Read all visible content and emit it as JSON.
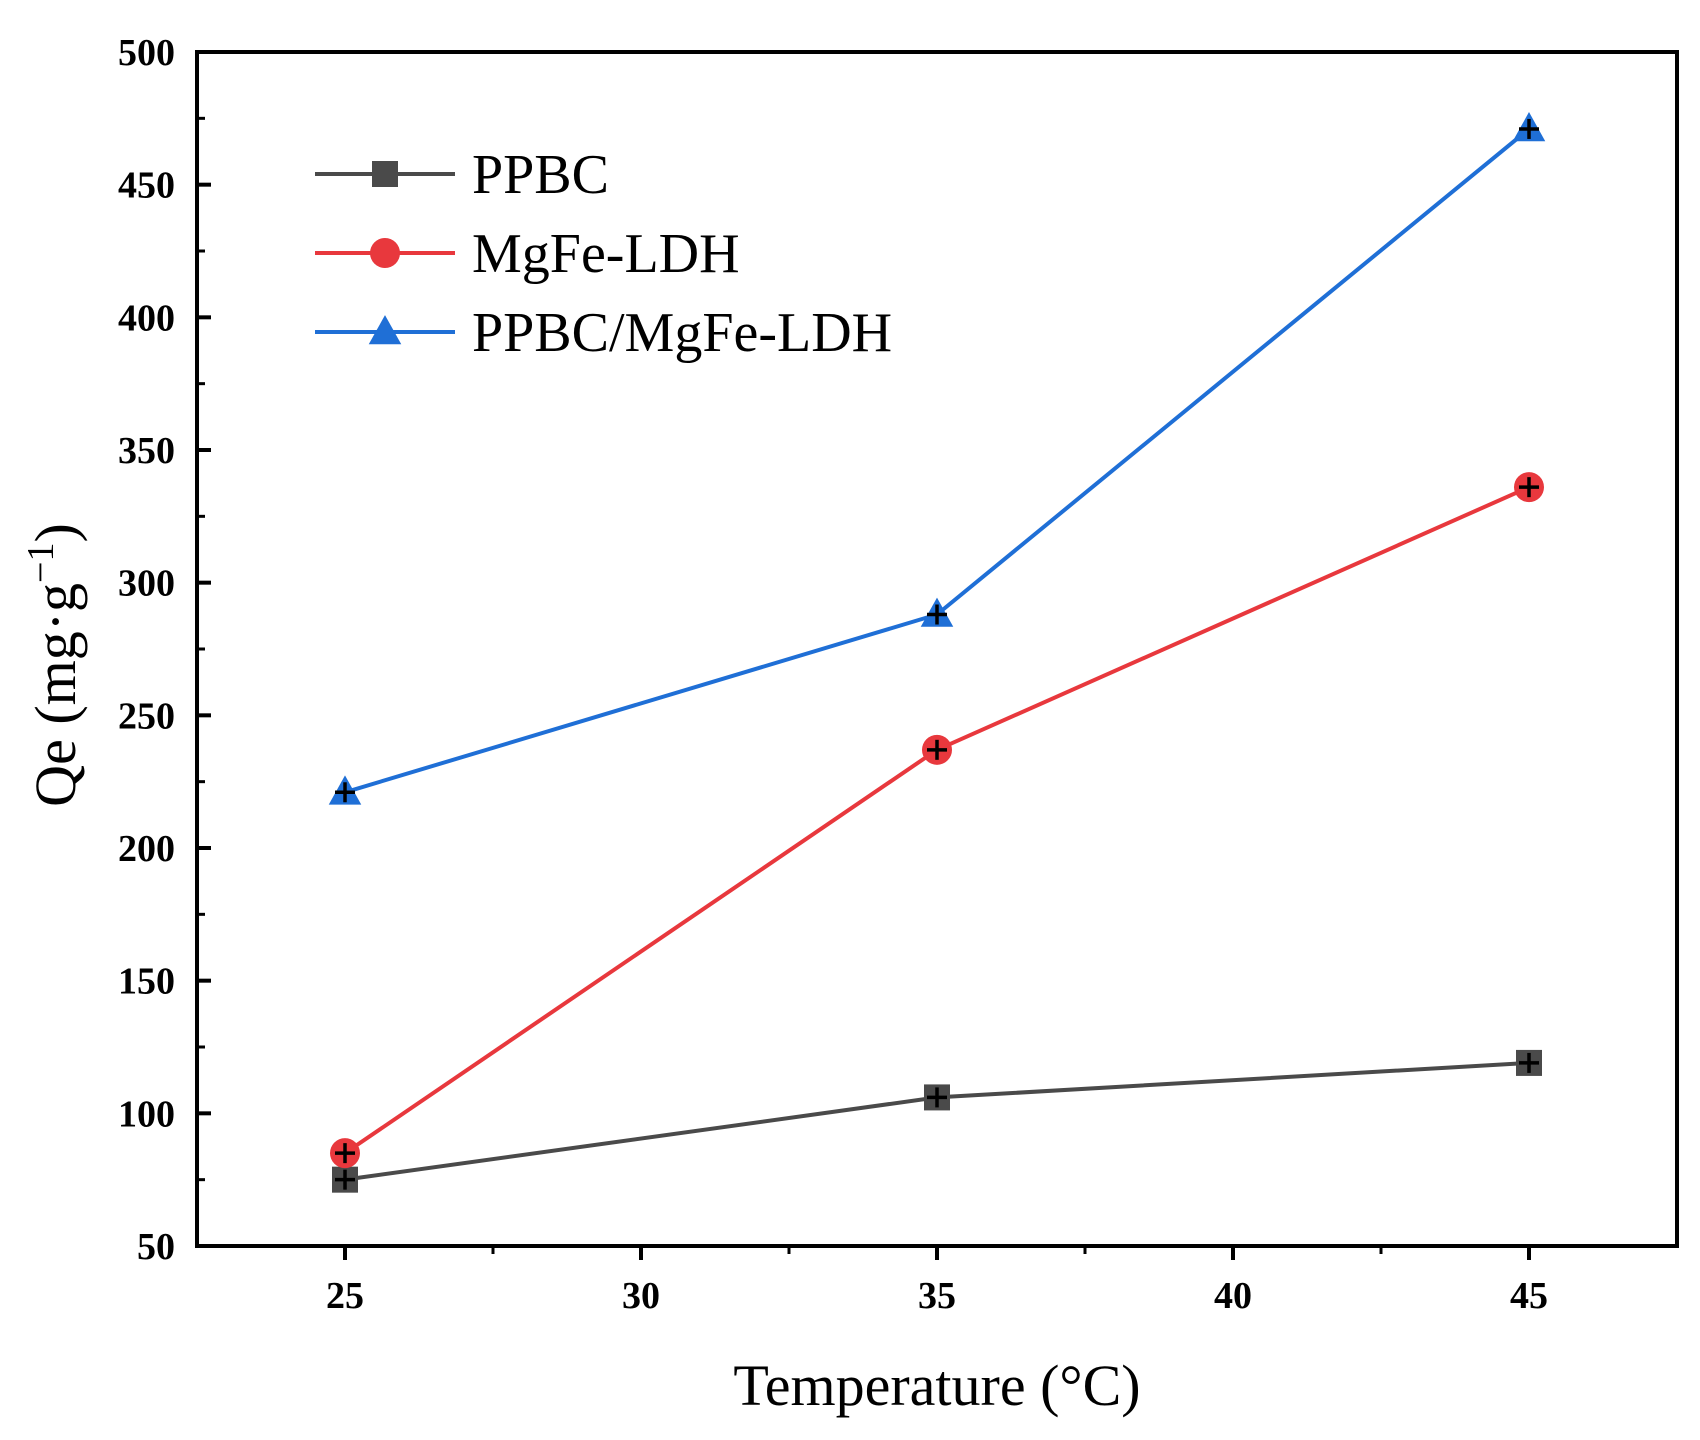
{
  "chart_data": {
    "type": "line",
    "title": "",
    "xlabel": "Temperature (°C)",
    "ylabel_main": "Qe (mg·g",
    "ylabel_sup": "−1",
    "ylabel_close": ")",
    "xlim": [
      22.5,
      47.5
    ],
    "ylim": [
      50,
      500
    ],
    "xticks": [
      25,
      30,
      35,
      40,
      45
    ],
    "yticks": [
      50,
      100,
      150,
      200,
      250,
      300,
      350,
      400,
      450,
      500
    ],
    "x": [
      25,
      35,
      45
    ],
    "legend_position": "top-left",
    "series": [
      {
        "name": "PPBC",
        "color": "#4a4a4a",
        "marker": "square",
        "values": [
          75,
          106,
          119
        ]
      },
      {
        "name": "MgFe-LDH",
        "color": "#e8383d",
        "marker": "circle",
        "values": [
          85,
          237,
          336
        ]
      },
      {
        "name": "PPBC/MgFe-LDH",
        "color": "#1f6fd6",
        "marker": "triangle",
        "values": [
          221,
          288,
          471
        ]
      }
    ]
  }
}
